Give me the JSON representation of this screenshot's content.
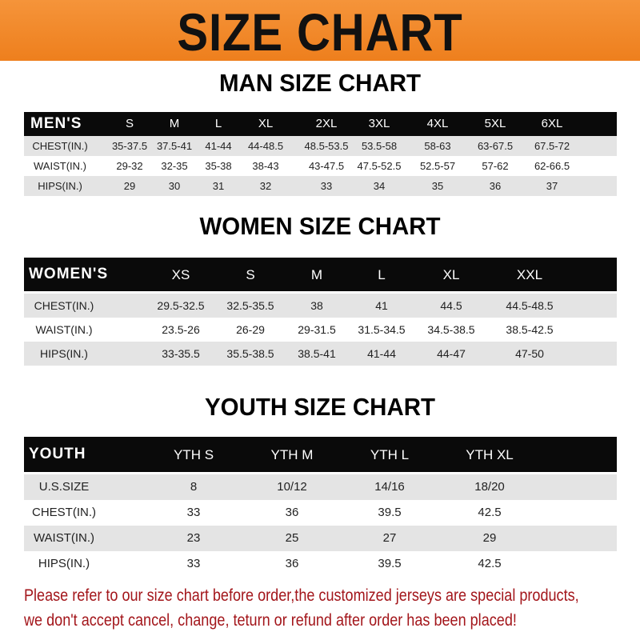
{
  "banner_title": "SIZE CHART",
  "men": {
    "title": "MAN SIZE CHART",
    "header": [
      "MEN'S",
      "S",
      "M",
      "L",
      "XL",
      "2XL",
      "3XL",
      "4XL",
      "5XL",
      "6XL"
    ],
    "rows": [
      [
        "CHEST(IN.)",
        "35-37.5",
        "37.5-41",
        "41-44",
        "44-48.5",
        "48.5-53.5",
        "53.5-58",
        "58-63",
        "63-67.5",
        "67.5-72"
      ],
      [
        "WAIST(IN.)",
        "29-32",
        "32-35",
        "35-38",
        "38-43",
        "43-47.5",
        "47.5-52.5",
        "52.5-57",
        "57-62",
        "62-66.5"
      ],
      [
        "HIPS(IN.)",
        "29",
        "30",
        "31",
        "32",
        "33",
        "34",
        "35",
        "36",
        "37"
      ]
    ]
  },
  "women": {
    "title": "WOMEN SIZE CHART",
    "header": [
      "WOMEN'S",
      "XS",
      "S",
      "M",
      "L",
      "XL",
      "XXL"
    ],
    "rows": [
      [
        "CHEST(IN.)",
        "29.5-32.5",
        "32.5-35.5",
        "38",
        "41",
        "44.5",
        "44.5-48.5"
      ],
      [
        "WAIST(IN.)",
        "23.5-26",
        "26-29",
        "29-31.5",
        "31.5-34.5",
        "34.5-38.5",
        "38.5-42.5"
      ],
      [
        "HIPS(IN.)",
        "33-35.5",
        "35.5-38.5",
        "38.5-41",
        "41-44",
        "44-47",
        "47-50"
      ]
    ]
  },
  "youth": {
    "title": "YOUTH SIZE CHART",
    "header": [
      "YOUTH",
      "YTH S",
      "YTH M",
      "YTH L",
      "YTH XL"
    ],
    "rows": [
      [
        "U.S.SIZE",
        "8",
        "10/12",
        "14/16",
        "18/20"
      ],
      [
        "CHEST(IN.)",
        "33",
        "36",
        "39.5",
        "42.5"
      ],
      [
        "WAIST(IN.)",
        "23",
        "25",
        "27",
        "29"
      ],
      [
        "HIPS(IN.)",
        "33",
        "36",
        "39.5",
        "42.5"
      ]
    ]
  },
  "notice": [
    "Please refer to our size chart before order,the customized jerseys are special products,",
    "we don't accept cancel, change, teturn or refund after order has been placed!"
  ]
}
